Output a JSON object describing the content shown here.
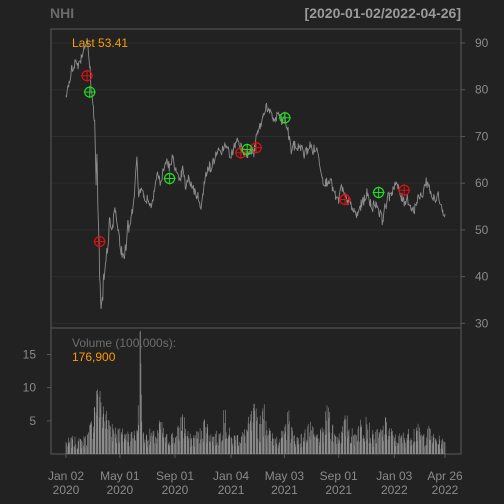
{
  "header": {
    "symbol": "NHI",
    "date_range": "[2020-01-02/2022-04-26]"
  },
  "colors": {
    "background": "#222222",
    "panel_border": "#5a5a5a",
    "grid": "#2d2d2d",
    "price_line": "#8c8c8c",
    "volume_bar": "#909090",
    "text": "#8a8a8a",
    "accent": "#ff9900",
    "buy_marker": "#22dd22",
    "sell_marker": "#dd1111"
  },
  "chart_data": {
    "type": "line",
    "title": "NHI",
    "subtitle": "[2020-01-02/2022-04-26]",
    "last_label": "Last 53.41",
    "volume_label": "Volume (100,000s):",
    "volume_last": "176,900",
    "x_ticks": [
      {
        "date": "2020-01-02",
        "line1": "Jan 02",
        "line2": "2020"
      },
      {
        "date": "2020-05-01",
        "line1": "May 01",
        "line2": "2020"
      },
      {
        "date": "2020-09-01",
        "line1": "Sep 01",
        "line2": "2020"
      },
      {
        "date": "2021-01-04",
        "line1": "Jan 04",
        "line2": "2021"
      },
      {
        "date": "2021-05-03",
        "line1": "May 03",
        "line2": "2021"
      },
      {
        "date": "2021-09-01",
        "line1": "Sep 01",
        "line2": "2021"
      },
      {
        "date": "2022-01-03",
        "line1": "Jan 03",
        "line2": "2022"
      },
      {
        "date": "2022-04-26",
        "line1": "Apr 26",
        "line2": "2022"
      }
    ],
    "price_axis": {
      "ylim": [
        29,
        93
      ],
      "ticks": [
        30,
        40,
        50,
        60,
        70,
        80,
        90
      ],
      "position": "right",
      "grid": true
    },
    "volume_axis": {
      "ylim": [
        0,
        19
      ],
      "ticks": [
        5,
        10,
        15
      ],
      "position": "left"
    },
    "price": [
      [
        "2020-01-02",
        79
      ],
      [
        "2020-01-07",
        81
      ],
      [
        "2020-01-14",
        84
      ],
      [
        "2020-01-22",
        86
      ],
      [
        "2020-01-29",
        85.5
      ],
      [
        "2020-02-05",
        87
      ],
      [
        "2020-02-12",
        89.5
      ],
      [
        "2020-02-18",
        90.5
      ],
      [
        "2020-02-21",
        88
      ],
      [
        "2020-02-25",
        84
      ],
      [
        "2020-02-28",
        79
      ],
      [
        "2020-03-03",
        76
      ],
      [
        "2020-03-06",
        73
      ],
      [
        "2020-03-09",
        60
      ],
      [
        "2020-03-11",
        66
      ],
      [
        "2020-03-13",
        56
      ],
      [
        "2020-03-16",
        46
      ],
      [
        "2020-03-18",
        36
      ],
      [
        "2020-03-20",
        32
      ],
      [
        "2020-03-23",
        33
      ],
      [
        "2020-03-26",
        41
      ],
      [
        "2020-03-31",
        46
      ],
      [
        "2020-04-03",
        44
      ],
      [
        "2020-04-08",
        52
      ],
      [
        "2020-04-14",
        50
      ],
      [
        "2020-04-20",
        55
      ],
      [
        "2020-04-27",
        51
      ],
      [
        "2020-05-04",
        47
      ],
      [
        "2020-05-11",
        44.5
      ],
      [
        "2020-05-18",
        49
      ],
      [
        "2020-05-26",
        52
      ],
      [
        "2020-06-02",
        58
      ],
      [
        "2020-06-08",
        65
      ],
      [
        "2020-06-12",
        57
      ],
      [
        "2020-06-18",
        60
      ],
      [
        "2020-06-25",
        56
      ],
      [
        "2020-07-02",
        57
      ],
      [
        "2020-07-10",
        55
      ],
      [
        "2020-07-17",
        59
      ],
      [
        "2020-07-24",
        62
      ],
      [
        "2020-07-31",
        60
      ],
      [
        "2020-08-07",
        63
      ],
      [
        "2020-08-14",
        65
      ],
      [
        "2020-08-21",
        63
      ],
      [
        "2020-08-28",
        66
      ],
      [
        "2020-09-04",
        62
      ],
      [
        "2020-09-11",
        60
      ],
      [
        "2020-09-18",
        63
      ],
      [
        "2020-09-25",
        59
      ],
      [
        "2020-10-02",
        61
      ],
      [
        "2020-10-09",
        59.5
      ],
      [
        "2020-10-16",
        58
      ],
      [
        "2020-10-23",
        57
      ],
      [
        "2020-10-30",
        55
      ],
      [
        "2020-11-06",
        60
      ],
      [
        "2020-11-13",
        64
      ],
      [
        "2020-11-20",
        63
      ],
      [
        "2020-11-27",
        65
      ],
      [
        "2020-12-04",
        67
      ],
      [
        "2020-12-11",
        66
      ],
      [
        "2020-12-18",
        68
      ],
      [
        "2020-12-28",
        67
      ],
      [
        "2021-01-05",
        66
      ],
      [
        "2021-01-12",
        68
      ],
      [
        "2021-01-19",
        69.5
      ],
      [
        "2021-01-26",
        68
      ],
      [
        "2021-02-02",
        67
      ],
      [
        "2021-02-09",
        66
      ],
      [
        "2021-02-16",
        67
      ],
      [
        "2021-02-23",
        66
      ],
      [
        "2021-03-02",
        70
      ],
      [
        "2021-03-09",
        72
      ],
      [
        "2021-03-16",
        74
      ],
      [
        "2021-03-23",
        77
      ],
      [
        "2021-03-30",
        75
      ],
      [
        "2021-04-06",
        74
      ],
      [
        "2021-04-13",
        73.5
      ],
      [
        "2021-04-20",
        75
      ],
      [
        "2021-04-27",
        73
      ],
      [
        "2021-05-04",
        74
      ],
      [
        "2021-05-11",
        71
      ],
      [
        "2021-05-18",
        67
      ],
      [
        "2021-05-25",
        68
      ],
      [
        "2021-06-01",
        67.5
      ],
      [
        "2021-06-08",
        68
      ],
      [
        "2021-06-15",
        66
      ],
      [
        "2021-06-22",
        67
      ],
      [
        "2021-06-29",
        68
      ],
      [
        "2021-07-06",
        67
      ],
      [
        "2021-07-13",
        67.5
      ],
      [
        "2021-07-20",
        65
      ],
      [
        "2021-07-27",
        61
      ],
      [
        "2021-08-03",
        60
      ],
      [
        "2021-08-10",
        61
      ],
      [
        "2021-08-17",
        59.5
      ],
      [
        "2021-08-24",
        57
      ],
      [
        "2021-08-31",
        56
      ],
      [
        "2021-09-07",
        59
      ],
      [
        "2021-09-14",
        57
      ],
      [
        "2021-09-21",
        56.5
      ],
      [
        "2021-09-28",
        55
      ],
      [
        "2021-10-05",
        54
      ],
      [
        "2021-10-12",
        53
      ],
      [
        "2021-10-19",
        55
      ],
      [
        "2021-10-26",
        56
      ],
      [
        "2021-11-02",
        58
      ],
      [
        "2021-11-09",
        56
      ],
      [
        "2021-11-16",
        55
      ],
      [
        "2021-11-23",
        56
      ],
      [
        "2021-11-30",
        54
      ],
      [
        "2021-12-07",
        52
      ],
      [
        "2021-12-14",
        55
      ],
      [
        "2021-12-21",
        57
      ],
      [
        "2021-12-28",
        58
      ],
      [
        "2022-01-04",
        60
      ],
      [
        "2022-01-11",
        59
      ],
      [
        "2022-01-18",
        57
      ],
      [
        "2022-01-25",
        56
      ],
      [
        "2022-02-01",
        57
      ],
      [
        "2022-02-08",
        55
      ],
      [
        "2022-02-15",
        54
      ],
      [
        "2022-02-22",
        56
      ],
      [
        "2022-03-01",
        57
      ],
      [
        "2022-03-08",
        58
      ],
      [
        "2022-03-15",
        60.5
      ],
      [
        "2022-03-22",
        59
      ],
      [
        "2022-03-29",
        57
      ],
      [
        "2022-04-05",
        56
      ],
      [
        "2022-04-12",
        57.5
      ],
      [
        "2022-04-19",
        55
      ],
      [
        "2022-04-26",
        53.41
      ]
    ],
    "volume": [
      [
        "2020-01-02",
        1.8
      ],
      [
        "2020-01-16",
        2.2
      ],
      [
        "2020-01-30",
        2.0
      ],
      [
        "2020-02-13",
        2.4
      ],
      [
        "2020-02-20",
        3.0
      ],
      [
        "2020-02-27",
        4.5
      ],
      [
        "2020-03-05",
        7.0
      ],
      [
        "2020-03-10",
        9.5
      ],
      [
        "2020-03-13",
        9.0
      ],
      [
        "2020-03-17",
        8.6
      ],
      [
        "2020-03-20",
        7.8
      ],
      [
        "2020-03-25",
        7.2
      ],
      [
        "2020-03-31",
        6.0
      ],
      [
        "2020-04-07",
        5.0
      ],
      [
        "2020-04-14",
        4.5
      ],
      [
        "2020-04-21",
        4.0
      ],
      [
        "2020-04-28",
        3.6
      ],
      [
        "2020-05-05",
        3.3
      ],
      [
        "2020-05-12",
        3.0
      ],
      [
        "2020-05-19",
        3.4
      ],
      [
        "2020-05-26",
        3.1
      ],
      [
        "2020-06-02",
        3.5
      ],
      [
        "2020-06-09",
        3.2
      ],
      [
        "2020-06-15",
        18.5
      ],
      [
        "2020-06-22",
        3.0
      ],
      [
        "2020-06-29",
        2.8
      ],
      [
        "2020-07-10",
        3.2
      ],
      [
        "2020-07-20",
        2.6
      ],
      [
        "2020-07-31",
        4.8
      ],
      [
        "2020-08-10",
        2.5
      ],
      [
        "2020-08-24",
        3.0
      ],
      [
        "2020-09-04",
        2.7
      ],
      [
        "2020-09-18",
        6.0
      ],
      [
        "2020-10-02",
        2.4
      ],
      [
        "2020-10-16",
        2.8
      ],
      [
        "2020-10-30",
        3.5
      ],
      [
        "2020-11-06",
        5.2
      ],
      [
        "2020-11-13",
        4.0
      ],
      [
        "2020-11-27",
        2.6
      ],
      [
        "2020-12-11",
        3.2
      ],
      [
        "2020-12-18",
        6.6
      ],
      [
        "2021-01-04",
        2.5
      ],
      [
        "2021-01-18",
        2.8
      ],
      [
        "2021-02-01",
        3.0
      ],
      [
        "2021-02-26",
        6.5
      ],
      [
        "2021-03-12",
        4.5
      ],
      [
        "2021-03-19",
        7.5
      ],
      [
        "2021-04-01",
        3.0
      ],
      [
        "2021-04-16",
        2.6
      ],
      [
        "2021-05-03",
        3.0
      ],
      [
        "2021-05-10",
        6.3
      ],
      [
        "2021-05-24",
        2.7
      ],
      [
        "2021-06-14",
        2.5
      ],
      [
        "2021-06-25",
        4.5
      ],
      [
        "2021-07-12",
        2.6
      ],
      [
        "2021-07-28",
        3.3
      ],
      [
        "2021-08-09",
        7.0
      ],
      [
        "2021-08-23",
        3.0
      ],
      [
        "2021-09-07",
        3.4
      ],
      [
        "2021-09-17",
        5.2
      ],
      [
        "2021-10-04",
        2.8
      ],
      [
        "2021-10-15",
        4.2
      ],
      [
        "2021-11-01",
        5.6
      ],
      [
        "2021-11-15",
        2.9
      ],
      [
        "2021-12-01",
        3.2
      ],
      [
        "2021-12-17",
        4.8
      ],
      [
        "2022-01-03",
        2.5
      ],
      [
        "2022-01-18",
        2.7
      ],
      [
        "2022-02-01",
        3.0
      ],
      [
        "2022-02-22",
        4.0
      ],
      [
        "2022-03-07",
        2.7
      ],
      [
        "2022-03-18",
        3.8
      ],
      [
        "2022-04-01",
        2.5
      ],
      [
        "2022-04-14",
        2.2
      ],
      [
        "2022-04-26",
        1.77
      ]
    ],
    "buy_signals": [
      [
        "2020-02-24",
        79.5
      ],
      [
        "2020-08-20",
        61
      ],
      [
        "2021-02-09",
        67.2
      ],
      [
        "2021-05-04",
        74
      ],
      [
        "2021-11-29",
        58
      ]
    ],
    "sell_signals": [
      [
        "2020-02-18",
        83
      ],
      [
        "2020-03-17",
        47.5
      ],
      [
        "2021-01-26",
        66.5
      ],
      [
        "2021-03-01",
        67.6
      ],
      [
        "2021-09-15",
        56.5
      ],
      [
        "2022-01-25",
        58.5
      ]
    ]
  }
}
